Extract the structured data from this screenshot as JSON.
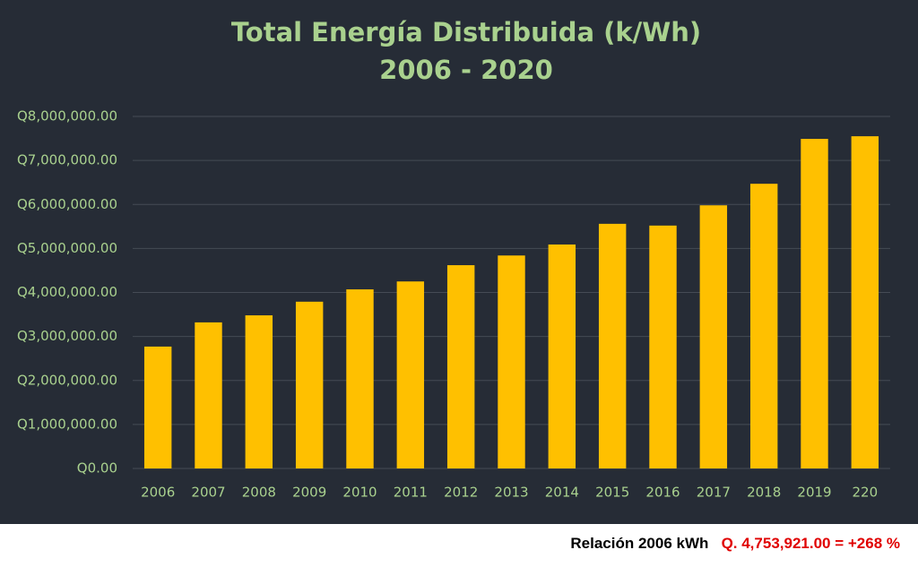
{
  "chart_data": {
    "type": "bar",
    "title": "Total Energía Distribuida (k/Wh)",
    "subtitle": "2006 - 2020",
    "categories": [
      "2006",
      "2007",
      "2008",
      "2009",
      "2010",
      "2011",
      "2012",
      "2013",
      "2014",
      "2015",
      "2016",
      "2017",
      "2018",
      "2019",
      "220"
    ],
    "values": [
      2770000,
      3320000,
      3480000,
      3790000,
      4070000,
      4250000,
      4620000,
      4840000,
      5090000,
      5560000,
      5520000,
      5980000,
      6470000,
      7490000,
      7550000
    ],
    "color": "#ffc000",
    "ylim": [
      0,
      8000000
    ],
    "yticks": [
      {
        "value": 0,
        "label": "Q0.00"
      },
      {
        "value": 1000000,
        "label": "Q1,000,000.00"
      },
      {
        "value": 2000000,
        "label": "Q2,000,000.00"
      },
      {
        "value": 3000000,
        "label": "Q3,000,000.00"
      },
      {
        "value": 4000000,
        "label": "Q4,000,000.00"
      },
      {
        "value": 5000000,
        "label": "Q5,000,000.00"
      },
      {
        "value": 6000000,
        "label": "Q6,000,000.00"
      },
      {
        "value": 7000000,
        "label": "Q7,000,000.00"
      },
      {
        "value": 8000000,
        "label": "Q8,000,000.00"
      }
    ],
    "grid": true
  },
  "footer": {
    "label": "Relación 2006 kWh",
    "value": "Q. 4,753,921.00 = +268 %"
  }
}
